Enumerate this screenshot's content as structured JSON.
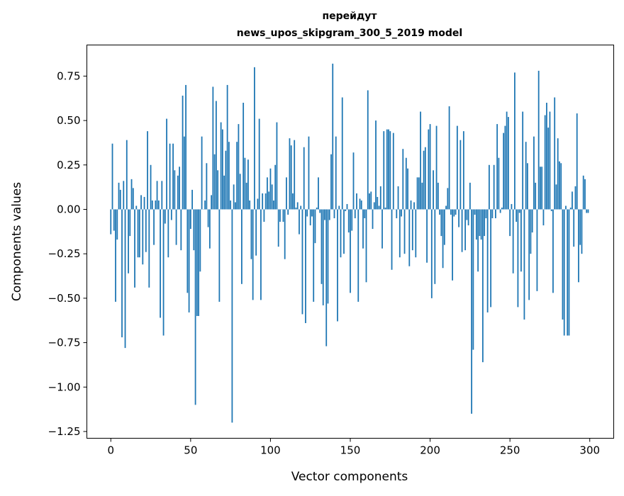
{
  "chart_data": {
    "type": "bar",
    "title": "перейдут",
    "subtitle": "news_upos_skipgram_300_5_2019 model",
    "xlabel": "Vector components",
    "ylabel": "Components values",
    "xlim": [
      -15,
      315
    ],
    "ylim": [
      -1.288,
      0.925
    ],
    "xticks": [
      0,
      50,
      100,
      150,
      200,
      250,
      300
    ],
    "xtick_labels": [
      "0",
      "50",
      "100",
      "150",
      "200",
      "250",
      "300"
    ],
    "yticks": [
      0.75,
      0.5,
      0.25,
      0.0,
      -0.25,
      -0.5,
      -0.75,
      -1.0,
      -1.25
    ],
    "ytick_labels": [
      "0.75",
      "0.50",
      "0.25",
      "0.00",
      "−0.25",
      "−0.50",
      "−0.75",
      "−1.00",
      "−1.25"
    ],
    "grid": false,
    "bar_color": "#1f77b4",
    "values": [
      -0.14,
      0.37,
      -0.12,
      -0.52,
      -0.17,
      0.15,
      0.11,
      -0.72,
      0.16,
      -0.78,
      0.39,
      -0.36,
      -0.15,
      0.17,
      0.12,
      -0.44,
      0.02,
      -0.27,
      -0.27,
      0.08,
      -0.31,
      0.07,
      -0.24,
      0.44,
      -0.44,
      0.25,
      0.05,
      -0.2,
      0.05,
      0.16,
      0.05,
      -0.61,
      0.16,
      -0.71,
      -0.08,
      0.51,
      -0.27,
      0.37,
      -0.06,
      0.37,
      0.22,
      -0.2,
      0.19,
      0.24,
      -0.23,
      0.64,
      0.41,
      0.7,
      -0.47,
      -0.58,
      -0.11,
      0.11,
      -0.23,
      -1.1,
      -0.6,
      -0.6,
      -0.35,
      0.41,
      0.0,
      0.05,
      0.26,
      -0.1,
      -0.22,
      0.08,
      0.69,
      0.31,
      0.61,
      0.22,
      -0.52,
      0.49,
      0.45,
      0.19,
      0.33,
      0.7,
      0.38,
      0.05,
      -1.2,
      0.14,
      0.04,
      0.38,
      0.48,
      0.2,
      -0.42,
      0.6,
      0.29,
      0.15,
      0.28,
      0.05,
      -0.28,
      -0.51,
      0.8,
      -0.26,
      0.06,
      0.51,
      -0.51,
      0.09,
      -0.07,
      0.09,
      0.18,
      0.1,
      0.23,
      0.14,
      0.05,
      0.25,
      0.49,
      -0.21,
      -0.07,
      0.0,
      -0.07,
      -0.28,
      0.18,
      -0.03,
      0.4,
      0.36,
      0.09,
      0.39,
      0.01,
      0.04,
      -0.14,
      0.02,
      -0.59,
      0.35,
      -0.64,
      -0.04,
      0.41,
      -0.09,
      -0.04,
      -0.52,
      -0.19,
      0.01,
      0.18,
      -0.02,
      -0.42,
      -0.54,
      -0.06,
      -0.77,
      -0.53,
      -0.06,
      0.31,
      0.82,
      -0.05,
      0.41,
      -0.63,
      0.02,
      -0.27,
      0.63,
      -0.25,
      -0.01,
      0.03,
      -0.13,
      -0.47,
      -0.12,
      0.32,
      -0.05,
      0.09,
      -0.52,
      0.06,
      0.05,
      -0.22,
      -0.05,
      -0.41,
      0.67,
      0.09,
      0.1,
      -0.11,
      0.04,
      0.5,
      0.07,
      0.02,
      0.13,
      -0.22,
      0.44,
      0.01,
      0.45,
      0.45,
      0.44,
      -0.34,
      0.43,
      0.0,
      -0.05,
      0.13,
      -0.27,
      -0.04,
      0.34,
      -0.25,
      0.29,
      0.23,
      -0.32,
      0.05,
      -0.23,
      0.04,
      -0.27,
      0.18,
      0.18,
      0.55,
      0.15,
      0.33,
      0.35,
      -0.3,
      0.45,
      0.48,
      -0.5,
      0.22,
      -0.42,
      0.47,
      0.15,
      -0.03,
      -0.15,
      -0.33,
      -0.2,
      0.02,
      0.12,
      0.58,
      -0.03,
      -0.4,
      -0.04,
      -0.03,
      0.47,
      -0.1,
      0.39,
      -0.24,
      0.44,
      -0.23,
      -0.06,
      -0.09,
      0.15,
      -1.15,
      -0.79,
      -0.03,
      -0.17,
      -0.35,
      -0.15,
      -0.17,
      -0.86,
      -0.15,
      -0.05,
      -0.58,
      0.25,
      -0.55,
      -0.05,
      0.25,
      -0.05,
      0.48,
      0.29,
      -0.02,
      0.01,
      0.43,
      0.47,
      0.55,
      0.52,
      -0.15,
      0.03,
      -0.36,
      0.77,
      -0.07,
      -0.55,
      -0.02,
      -0.35,
      0.55,
      -0.62,
      0.38,
      0.26,
      -0.51,
      -0.25,
      -0.13,
      0.41,
      0.15,
      -0.46,
      0.78,
      0.24,
      0.24,
      -0.09,
      0.53,
      0.6,
      0.46,
      0.55,
      -0.01,
      -0.47,
      0.63,
      0.14,
      0.4,
      0.27,
      0.26,
      -0.62,
      -0.71,
      0.02,
      -0.71,
      -0.71,
      0.01,
      0.1,
      -0.21,
      0.13,
      0.54,
      -0.41,
      -0.2,
      -0.25,
      0.19,
      0.17,
      -0.02,
      -0.02
    ]
  }
}
